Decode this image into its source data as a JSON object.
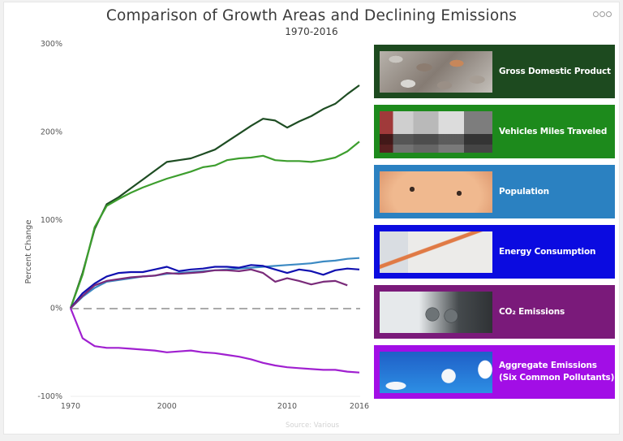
{
  "header": {
    "title": "Comparison of Growth Areas and Declining Emissions",
    "subtitle": "1970-2016",
    "menu_icon": "more-options-icon"
  },
  "chart_data": {
    "type": "line",
    "title": "Comparison of Growth Areas and Declining Emissions",
    "subtitle": "1970-2016",
    "xlabel": "",
    "ylabel": "Percent Change",
    "source": "Source: Various",
    "x": [
      "1970",
      "1980",
      "1990",
      "1995",
      "1996",
      "1997",
      "1998",
      "1999",
      "2000",
      "2001",
      "2002",
      "2003",
      "2004",
      "2005",
      "2006",
      "2007",
      "2008",
      "2009",
      "2010",
      "2011",
      "2012",
      "2013",
      "2014",
      "2015",
      "2016"
    ],
    "x_tick_labels": [
      "1970",
      "2000",
      "2010",
      "2016"
    ],
    "y_tick_labels": [
      "300%",
      "200%",
      "100%",
      "0%",
      "-100%"
    ],
    "ylim": [
      -100,
      300
    ],
    "grid": false,
    "reference_line": {
      "y": 0,
      "style": "dashed",
      "color": "#aaaaaa"
    },
    "legend_position": "right",
    "series": [
      {
        "name": "Gross Domestic Product",
        "color": "#1e4d23",
        "panel_color": "#1d4a1f",
        "image": "coins",
        "values": [
          0,
          40,
          90,
          118,
          126,
          136,
          146,
          156,
          166,
          168,
          170,
          175,
          180,
          189,
          198,
          207,
          215,
          213,
          205,
          212,
          218,
          226,
          232,
          243,
          253
        ]
      },
      {
        "name": "Vehicles Miles Traveled",
        "color": "#3d9e2e",
        "panel_color": "#1d8a1c",
        "image": "traffic",
        "values": [
          0,
          38,
          92,
          116,
          124,
          131,
          137,
          142,
          147,
          151,
          155,
          160,
          162,
          168,
          170,
          171,
          173,
          168,
          167,
          167,
          166,
          168,
          171,
          178,
          189
        ]
      },
      {
        "name": "Population",
        "color": "#3c8ac3",
        "panel_color": "#2b81c1",
        "image": "baby",
        "values": [
          0,
          13,
          23,
          30,
          32,
          34,
          36,
          37,
          39,
          40,
          41,
          42,
          43,
          44,
          45,
          46,
          47,
          48,
          49,
          50,
          51,
          53,
          54,
          56,
          57
        ]
      },
      {
        "name": "Energy Consumption",
        "color": "#1010b0",
        "panel_color": "#0b0be0",
        "image": "plug",
        "values": [
          0,
          17,
          28,
          36,
          40,
          41,
          41,
          44,
          47,
          42,
          44,
          45,
          47,
          47,
          46,
          49,
          48,
          44,
          40,
          44,
          42,
          38,
          43,
          45,
          44
        ]
      },
      {
        "name": "CO₂ Emissions",
        "color": "#7a2b7a",
        "panel_color": "#7a1a7a",
        "image": "exhaust",
        "values": [
          0,
          14,
          26,
          31,
          33,
          35,
          36,
          37,
          40,
          39,
          40,
          41,
          43,
          43,
          42,
          44,
          40,
          30,
          34,
          31,
          27,
          30,
          31,
          26,
          null
        ]
      },
      {
        "name": "Aggregate Emissions (Six Common Pollutants)",
        "color": "#a020d0",
        "panel_color": "#a20ee6",
        "image": "smokestacks",
        "values": [
          0,
          -34,
          -43,
          -45,
          -45,
          -46,
          -47,
          -48,
          -50,
          -49,
          -48,
          -50,
          -51,
          -53,
          -55,
          -58,
          -62,
          -65,
          -67,
          -68,
          -69,
          -70,
          -70,
          -72,
          -73
        ]
      }
    ]
  },
  "legend": {
    "items": [
      {
        "label_line1": "Gross Domestic Product",
        "label_line2": ""
      },
      {
        "label_line1": "Vehicles Miles Traveled",
        "label_line2": ""
      },
      {
        "label_line1": "Population",
        "label_line2": ""
      },
      {
        "label_line1": "Energy Consumption",
        "label_line2": ""
      },
      {
        "label_line1": "CO₂ Emissions",
        "label_line2": ""
      },
      {
        "label_line1": "Aggregate Emissions",
        "label_line2": "(Six Common Pollutants)"
      }
    ]
  }
}
